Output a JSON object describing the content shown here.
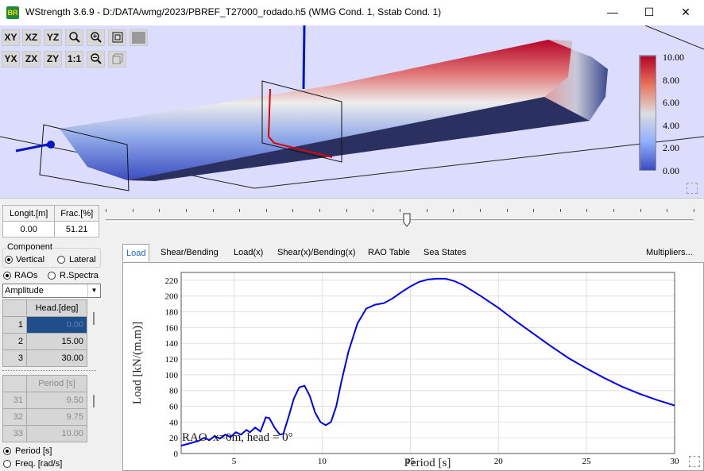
{
  "window": {
    "title": "WStrength 3.6.9 - D:/DATA/wmg/2023/PBREF_T27000_rodado.h5 (WMG Cond. 1, Sstab Cond. 1)",
    "logo_text": "BR",
    "minimize": "—",
    "maximize": "☐",
    "close": "✕"
  },
  "view_toolbar": {
    "row1": [
      "XY",
      "XZ",
      "YZ"
    ],
    "row2": [
      "YX",
      "ZX",
      "ZY",
      "1:1"
    ],
    "icons": [
      "zoom-icon",
      "zoom-in-icon",
      "fit-icon",
      "stop-icon",
      "zoom-out-icon",
      "box-view-icon"
    ]
  },
  "colorbar": {
    "labels": [
      "10.00",
      "8.00",
      "6.00",
      "4.00",
      "2.00",
      "0.00"
    ],
    "colors": [
      "#b40426",
      "#e7745b",
      "#dddddd",
      "#8fb1fe",
      "#3b4cc0"
    ]
  },
  "position": {
    "col_longit": "Longit.[m]",
    "col_frac": "Frac.[%]",
    "longit": "0.00",
    "frac": "51.21",
    "slider_fraction": 0.5121
  },
  "component": {
    "group_label": "Component",
    "vertical": "Vertical",
    "lateral": "Lateral",
    "raos": "RAOs",
    "rspectra": "R.Spectra",
    "amplitude": "Amplitude"
  },
  "heading_table": {
    "header": "Head.[deg]",
    "rows": [
      {
        "n": "1",
        "v": "0.00"
      },
      {
        "n": "2",
        "v": "15.00"
      },
      {
        "n": "3",
        "v": "30.00"
      }
    ]
  },
  "period_table": {
    "header": "Period [s]",
    "rows": [
      {
        "n": "31",
        "v": "9.50"
      },
      {
        "n": "32",
        "v": "9.75"
      },
      {
        "n": "33",
        "v": "10.00"
      }
    ]
  },
  "abscissa": {
    "period": "Period [s]",
    "freq": "Freq. [rad/s]"
  },
  "tabs": [
    "Load",
    "Shear/Bending",
    "Load(x)",
    "Shear(x)/Bending(x)",
    "RAO Table",
    "Sea States"
  ],
  "multipliers": "Multipliers...",
  "chart_data": {
    "type": "line",
    "xlabel": "Period [s]",
    "ylabel": "Load [kN/(m.m)]",
    "annotation": "RAO. x=0m, head = 0°",
    "xlim": [
      2,
      30
    ],
    "ylim": [
      0,
      230
    ],
    "xticks": [
      5,
      10,
      15,
      20,
      25,
      30
    ],
    "yticks": [
      0,
      20,
      40,
      60,
      80,
      100,
      120,
      140,
      160,
      180,
      200,
      220
    ],
    "color": "#0000ee",
    "x": [
      2.0,
      2.5,
      3.0,
      3.3,
      3.6,
      3.9,
      4.2,
      4.5,
      4.8,
      5.1,
      5.4,
      5.7,
      5.9,
      6.2,
      6.5,
      6.8,
      7.0,
      7.3,
      7.6,
      7.8,
      8.1,
      8.4,
      8.7,
      9.0,
      9.3,
      9.6,
      9.9,
      10.2,
      10.5,
      10.8,
      11.1,
      11.5,
      12.0,
      12.5,
      13.0,
      13.5,
      14.0,
      14.5,
      15.0,
      15.5,
      16.0,
      16.5,
      17.0,
      17.5,
      18.0,
      19.0,
      20.0,
      21.0,
      22.0,
      23.0,
      24.0,
      25.0,
      26.0,
      27.0,
      28.0,
      29.0,
      30.0
    ],
    "y": [
      10,
      13,
      16,
      20,
      17,
      22,
      19,
      24,
      21,
      27,
      24,
      30,
      27,
      33,
      28,
      46,
      45,
      33,
      24,
      25,
      47,
      70,
      84,
      86,
      73,
      52,
      40,
      36,
      40,
      60,
      92,
      130,
      165,
      184,
      189,
      191,
      197,
      205,
      212,
      218,
      221,
      222,
      222,
      219,
      214,
      200,
      185,
      168,
      152,
      136,
      121,
      108,
      96,
      85,
      76,
      68,
      61
    ]
  }
}
